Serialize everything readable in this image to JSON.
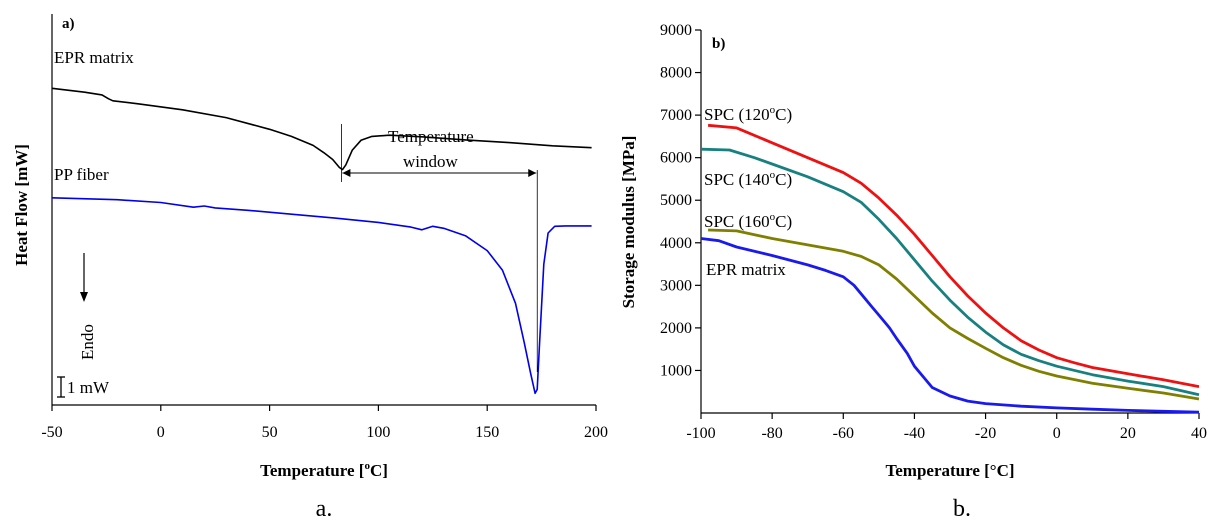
{
  "chart_data": [
    {
      "type": "line",
      "panel_label": "a)",
      "caption": "a.",
      "xlabel": "Temperature [",
      "xlabel_unit": "o",
      "xlabel_end": "C]",
      "ylabel": "Heat Flow [mW]",
      "xlim": [
        -50,
        200
      ],
      "xticks": [
        "-50",
        "0",
        "50",
        "100",
        "150",
        "200"
      ],
      "ylim": [
        0,
        100
      ],
      "annotations": {
        "window_text_1": "Temperature",
        "window_text_2": "window",
        "window_start": 83,
        "window_end": 173,
        "endo": "Endo",
        "scale": "1 mW"
      },
      "series": [
        {
          "name": "EPR matrix",
          "color": "#000000",
          "x": [
            -50,
            -35,
            -27,
            -24,
            -22,
            -10,
            10,
            30,
            50,
            60,
            70,
            75,
            79,
            82,
            83.5,
            85,
            88,
            92,
            97,
            105,
            120,
            140,
            160,
            180,
            198
          ],
          "y": [
            81,
            80,
            79.3,
            78.3,
            77.8,
            77,
            75.5,
            73.5,
            70.5,
            68.7,
            66.4,
            64.5,
            62.8,
            60.8,
            60.2,
            61.4,
            65.2,
            67.7,
            68.7,
            69.0,
            68.6,
            67.8,
            67.1,
            66.3,
            65.8
          ]
        },
        {
          "name": "PP fiber",
          "color": "#0000ee",
          "x": [
            -50,
            -20,
            0,
            15,
            20,
            25,
            40,
            60,
            80,
            100,
            115,
            120,
            125,
            130,
            140,
            150,
            157,
            163,
            167,
            170,
            172,
            173,
            174,
            176,
            178,
            181,
            186,
            198
          ],
          "y": [
            53,
            52.5,
            51.8,
            50.6,
            50.9,
            50.4,
            49.8,
            48.8,
            47.8,
            46.7,
            45.5,
            44.8,
            45.7,
            45.2,
            43.3,
            39.5,
            34.5,
            26,
            16,
            8,
            3,
            4,
            15,
            36,
            44,
            45.7,
            45.8,
            45.8
          ]
        }
      ]
    },
    {
      "type": "line",
      "panel_label": "b)",
      "caption": "b.",
      "xlabel": "Temperature [°C]",
      "ylabel": "Storage modulus [MPa]",
      "xlim": [
        -100,
        40
      ],
      "ylim": [
        0,
        9000
      ],
      "xticks": [
        "-100",
        "-80",
        "-60",
        "-40",
        "-20",
        "0",
        "20",
        "40"
      ],
      "yticks": [
        "1000",
        "2000",
        "3000",
        "4000",
        "5000",
        "6000",
        "7000",
        "8000",
        "9000"
      ],
      "series": [
        {
          "name": "SPC (120°C)",
          "label_parts": [
            "SPC (120",
            "o",
            "C)"
          ],
          "color": "#ee1111",
          "x": [
            -98,
            -90,
            -80,
            -70,
            -60,
            -55,
            -50,
            -45,
            -40,
            -35,
            -30,
            -25,
            -20,
            -15,
            -10,
            -5,
            0,
            5,
            10,
            20,
            30,
            40
          ],
          "y": [
            6760,
            6700,
            6350,
            6000,
            5650,
            5400,
            5050,
            4650,
            4200,
            3700,
            3200,
            2750,
            2350,
            2000,
            1700,
            1480,
            1300,
            1180,
            1070,
            920,
            780,
            620
          ]
        },
        {
          "name": "SPC (140°C)",
          "label_parts": [
            "SPC (140",
            "o",
            "C)"
          ],
          "color": "#198080",
          "x": [
            -100,
            -92,
            -85,
            -80,
            -70,
            -60,
            -55,
            -50,
            -45,
            -40,
            -35,
            -30,
            -25,
            -20,
            -15,
            -10,
            -5,
            0,
            10,
            20,
            30,
            40
          ],
          "y": [
            6200,
            6180,
            6000,
            5850,
            5550,
            5200,
            4950,
            4550,
            4100,
            3600,
            3100,
            2650,
            2250,
            1900,
            1600,
            1380,
            1230,
            1100,
            900,
            750,
            620,
            430
          ]
        },
        {
          "name": "SPC (160°C)",
          "label_parts": [
            "SPC (160",
            "o",
            "C)"
          ],
          "color": "#808000",
          "x": [
            -98,
            -90,
            -80,
            -70,
            -60,
            -55,
            -50,
            -45,
            -40,
            -35,
            -30,
            -25,
            -20,
            -15,
            -10,
            -5,
            0,
            10,
            20,
            30,
            40
          ],
          "y": [
            4300,
            4280,
            4100,
            3950,
            3800,
            3680,
            3480,
            3150,
            2750,
            2350,
            2000,
            1750,
            1520,
            1300,
            1120,
            980,
            870,
            700,
            580,
            470,
            330
          ]
        },
        {
          "name": "EPR matrix",
          "label_parts": [
            "EPR matrix",
            "",
            ""
          ],
          "color": "#1a1aee",
          "x": [
            -100,
            -95,
            -90,
            -80,
            -70,
            -65,
            -60,
            -57,
            -55,
            -52,
            -50,
            -47,
            -45,
            -42,
            -40,
            -37,
            -35,
            -30,
            -25,
            -20,
            -10,
            0,
            10,
            20,
            30,
            40
          ],
          "y": [
            4100,
            4050,
            3900,
            3700,
            3480,
            3350,
            3200,
            3000,
            2800,
            2500,
            2300,
            2000,
            1750,
            1400,
            1100,
            800,
            600,
            400,
            280,
            220,
            160,
            120,
            90,
            60,
            40,
            20
          ]
        }
      ]
    }
  ]
}
